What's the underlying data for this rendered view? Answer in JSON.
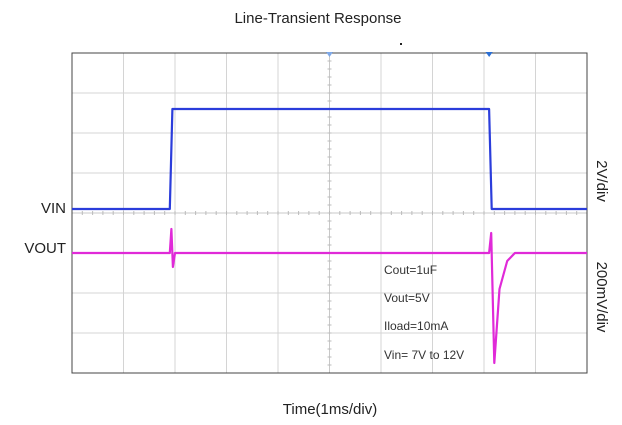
{
  "chart_data": {
    "type": "line",
    "title": "Line-Transient Response",
    "xlabel": "Time(1ms/div)",
    "x_divisions": 10,
    "y_divisions": 8,
    "grid": true,
    "x_unit": "ms",
    "trigger_markers_x": [
      5,
      8.1
    ],
    "series": [
      {
        "name": "VIN",
        "scale_label": "2V/div",
        "color": "#2b3ddb",
        "x": [
          0,
          1.9,
          1.95,
          8.1,
          8.15,
          10
        ],
        "y": [
          7,
          7,
          12,
          12,
          7,
          7
        ]
      },
      {
        "name": "VOUT",
        "scale_label": "200mV/div",
        "color": "#e02ad8",
        "x": [
          0,
          1.9,
          1.93,
          1.96,
          2.0,
          8.1,
          8.14,
          8.2,
          8.3,
          8.45,
          8.6,
          10
        ],
        "y": [
          5,
          5,
          5.12,
          4.93,
          5,
          5,
          5.1,
          4.45,
          4.82,
          4.96,
          5,
          5
        ]
      }
    ],
    "annotations": [
      "Cout=1uF",
      "Vout=5V",
      "Iload=10mA",
      "Vin= 7V to 12V"
    ]
  }
}
